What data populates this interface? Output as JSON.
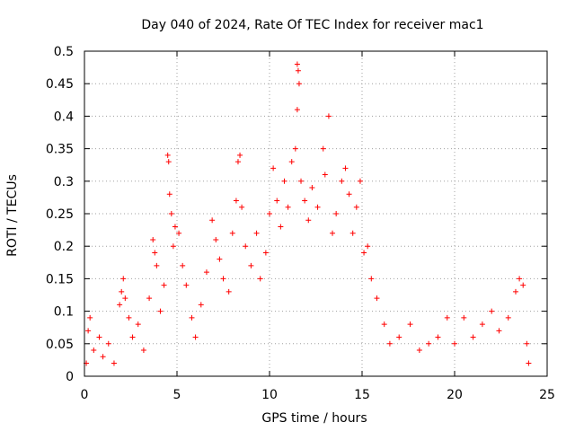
{
  "chart_data": {
    "type": "scatter",
    "title": "Day 040 of 2024, Rate Of TEC Index for receiver mac1",
    "xlabel": "GPS time / hours",
    "ylabel": "ROTI / TECUs",
    "xlim": [
      0,
      25
    ],
    "ylim": [
      0,
      0.5
    ],
    "x_ticks": [
      0,
      5,
      10,
      15,
      20,
      25
    ],
    "y_ticks": [
      0,
      0.05,
      0.1,
      0.15,
      0.2,
      0.25,
      0.3,
      0.35,
      0.4,
      0.45,
      0.5
    ],
    "x_tick_labels": [
      "0",
      "5",
      "10",
      "15",
      "20",
      "25"
    ],
    "y_tick_labels": [
      "0",
      "0.05",
      "0.1",
      "0.15",
      "0.2",
      "0.25",
      "0.3",
      "0.35",
      "0.4",
      "0.45",
      "0.5"
    ],
    "grid": true,
    "marker": "plus",
    "color": "#ff0000",
    "series": [
      {
        "values": [
          [
            0.1,
            0.02
          ],
          [
            0.2,
            0.07
          ],
          [
            0.3,
            0.09
          ],
          [
            0.5,
            0.04
          ],
          [
            0.8,
            0.06
          ],
          [
            1.0,
            0.03
          ],
          [
            1.3,
            0.05
          ],
          [
            1.6,
            0.02
          ],
          [
            1.9,
            0.11
          ],
          [
            2.0,
            0.13
          ],
          [
            2.1,
            0.15
          ],
          [
            2.2,
            0.12
          ],
          [
            2.4,
            0.09
          ],
          [
            2.6,
            0.06
          ],
          [
            2.9,
            0.08
          ],
          [
            3.2,
            0.04
          ],
          [
            3.5,
            0.12
          ],
          [
            3.7,
            0.21
          ],
          [
            3.8,
            0.19
          ],
          [
            3.9,
            0.17
          ],
          [
            4.1,
            0.1
          ],
          [
            4.3,
            0.14
          ],
          [
            4.5,
            0.34
          ],
          [
            4.55,
            0.33
          ],
          [
            4.6,
            0.28
          ],
          [
            4.7,
            0.25
          ],
          [
            4.8,
            0.2
          ],
          [
            4.9,
            0.23
          ],
          [
            5.1,
            0.22
          ],
          [
            5.3,
            0.17
          ],
          [
            5.5,
            0.14
          ],
          [
            5.8,
            0.09
          ],
          [
            6.0,
            0.06
          ],
          [
            6.3,
            0.11
          ],
          [
            6.6,
            0.16
          ],
          [
            6.9,
            0.24
          ],
          [
            7.1,
            0.21
          ],
          [
            7.3,
            0.18
          ],
          [
            7.5,
            0.15
          ],
          [
            7.8,
            0.13
          ],
          [
            8.0,
            0.22
          ],
          [
            8.2,
            0.27
          ],
          [
            8.3,
            0.33
          ],
          [
            8.4,
            0.34
          ],
          [
            8.5,
            0.26
          ],
          [
            8.7,
            0.2
          ],
          [
            9.0,
            0.17
          ],
          [
            9.3,
            0.22
          ],
          [
            9.5,
            0.15
          ],
          [
            9.8,
            0.19
          ],
          [
            10.0,
            0.25
          ],
          [
            10.2,
            0.32
          ],
          [
            10.4,
            0.27
          ],
          [
            10.6,
            0.23
          ],
          [
            10.8,
            0.3
          ],
          [
            11.0,
            0.26
          ],
          [
            11.2,
            0.33
          ],
          [
            11.4,
            0.35
          ],
          [
            11.5,
            0.48
          ],
          [
            11.55,
            0.47
          ],
          [
            11.6,
            0.45
          ],
          [
            11.5,
            0.41
          ],
          [
            11.7,
            0.3
          ],
          [
            11.9,
            0.27
          ],
          [
            12.1,
            0.24
          ],
          [
            12.3,
            0.29
          ],
          [
            12.6,
            0.26
          ],
          [
            12.9,
            0.35
          ],
          [
            13.0,
            0.31
          ],
          [
            13.2,
            0.4
          ],
          [
            13.4,
            0.22
          ],
          [
            13.6,
            0.25
          ],
          [
            13.9,
            0.3
          ],
          [
            14.1,
            0.32
          ],
          [
            14.3,
            0.28
          ],
          [
            14.5,
            0.22
          ],
          [
            14.7,
            0.26
          ],
          [
            14.9,
            0.3
          ],
          [
            15.1,
            0.19
          ],
          [
            15.3,
            0.2
          ],
          [
            15.5,
            0.15
          ],
          [
            15.8,
            0.12
          ],
          [
            16.2,
            0.08
          ],
          [
            16.5,
            0.05
          ],
          [
            17.0,
            0.06
          ],
          [
            17.6,
            0.08
          ],
          [
            18.1,
            0.04
          ],
          [
            18.6,
            0.05
          ],
          [
            19.1,
            0.06
          ],
          [
            19.6,
            0.09
          ],
          [
            20.0,
            0.05
          ],
          [
            20.5,
            0.09
          ],
          [
            21.0,
            0.06
          ],
          [
            21.5,
            0.08
          ],
          [
            22.0,
            0.1
          ],
          [
            22.4,
            0.07
          ],
          [
            22.9,
            0.09
          ],
          [
            23.3,
            0.13
          ],
          [
            23.5,
            0.15
          ],
          [
            23.7,
            0.14
          ],
          [
            23.9,
            0.05
          ],
          [
            24.0,
            0.02
          ]
        ]
      }
    ]
  }
}
